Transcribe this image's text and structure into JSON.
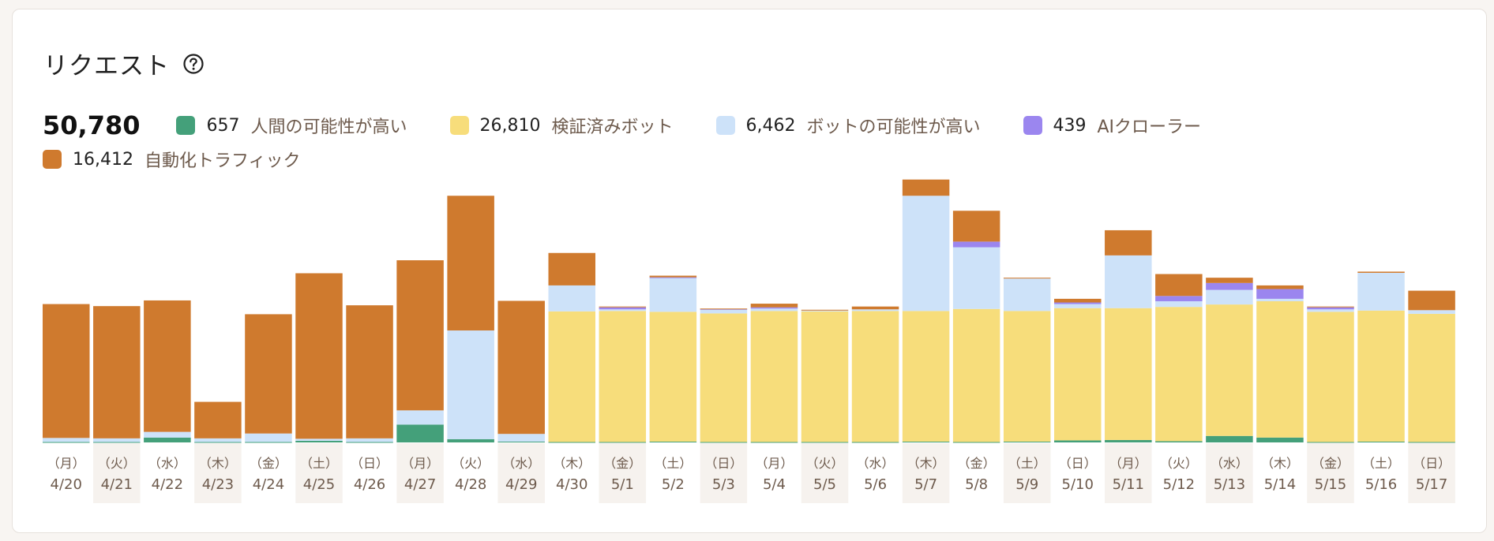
{
  "title": "リクエスト",
  "help_icon": "question-circle-icon",
  "total": "50,780",
  "legend": [
    {
      "key": "human",
      "count": "657",
      "label": "人間の可能性が高い",
      "color": "#44a07a"
    },
    {
      "key": "verified_bot",
      "count": "26,810",
      "label": "検証済みボット",
      "color": "#f7dd7b"
    },
    {
      "key": "likely_bot",
      "count": "6,462",
      "label": "ボットの可能性が高い",
      "color": "#cde2f9"
    },
    {
      "key": "ai_crawler",
      "count": "439",
      "label": "AIクローラー",
      "color": "#9b86ef"
    },
    {
      "key": "automated",
      "count": "16,412",
      "label": "自動化トラフィック",
      "color": "#cf7a2e"
    }
  ],
  "chart_data": {
    "type": "bar",
    "stacked": true,
    "categories": [
      "4/20",
      "4/21",
      "4/22",
      "4/23",
      "4/24",
      "4/25",
      "4/26",
      "4/27",
      "4/28",
      "4/29",
      "4/30",
      "5/1",
      "5/2",
      "5/3",
      "5/4",
      "5/5",
      "5/6",
      "5/7",
      "5/8",
      "5/9",
      "5/10",
      "5/11",
      "5/12",
      "5/13",
      "5/14",
      "5/15",
      "5/16",
      "5/17"
    ],
    "weekdays": [
      "（月）",
      "（火）",
      "（水）",
      "（木）",
      "（金）",
      "（土）",
      "（日）",
      "（月）",
      "（火）",
      "（水）",
      "（木）",
      "（金）",
      "（土）",
      "（日）",
      "（月）",
      "（火）",
      "（水）",
      "（木）",
      "（金）",
      "（土）",
      "（日）",
      "（月）",
      "（火）",
      "（水）",
      "（木）",
      "（金）",
      "（土）",
      "（日）"
    ],
    "ylim": [
      0,
      3120
    ],
    "series": [
      {
        "name": "人間の可能性が高い",
        "color": "#44a07a",
        "values": [
          5,
          5,
          60,
          5,
          5,
          20,
          5,
          220,
          40,
          10,
          5,
          5,
          10,
          5,
          5,
          5,
          5,
          10,
          5,
          10,
          25,
          30,
          15,
          80,
          60,
          5,
          10,
          5
        ]
      },
      {
        "name": "検証済みボット",
        "color": "#f7dd7b",
        "values": [
          0,
          0,
          0,
          0,
          0,
          0,
          0,
          0,
          0,
          0,
          1610,
          1615,
          1600,
          1585,
          1615,
          1610,
          1615,
          1610,
          1640,
          1610,
          1630,
          1625,
          1655,
          1620,
          1680,
          1605,
          1615,
          1580
        ]
      },
      {
        "name": "ボットの可能性が高い",
        "color": "#cde2f9",
        "values": [
          50,
          45,
          70,
          45,
          105,
          25,
          45,
          175,
          1340,
          95,
          320,
          20,
          420,
          50,
          30,
          10,
          20,
          1420,
          760,
          400,
          50,
          650,
          70,
          180,
          30,
          30,
          465,
          45
        ]
      },
      {
        "name": "AIクローラー",
        "color": "#9b86ef",
        "values": [
          0,
          0,
          0,
          0,
          0,
          0,
          0,
          0,
          0,
          0,
          0,
          25,
          5,
          5,
          15,
          0,
          0,
          0,
          70,
          0,
          20,
          0,
          65,
          85,
          120,
          25,
          0,
          0
        ]
      },
      {
        "name": "自動化トラフィック",
        "color": "#cf7a2e",
        "values": [
          1650,
          1630,
          1620,
          450,
          1470,
          2040,
          1640,
          1850,
          1660,
          1640,
          400,
          10,
          20,
          5,
          45,
          10,
          35,
          200,
          380,
          10,
          45,
          310,
          270,
          65,
          45,
          10,
          15,
          240
        ]
      }
    ]
  }
}
